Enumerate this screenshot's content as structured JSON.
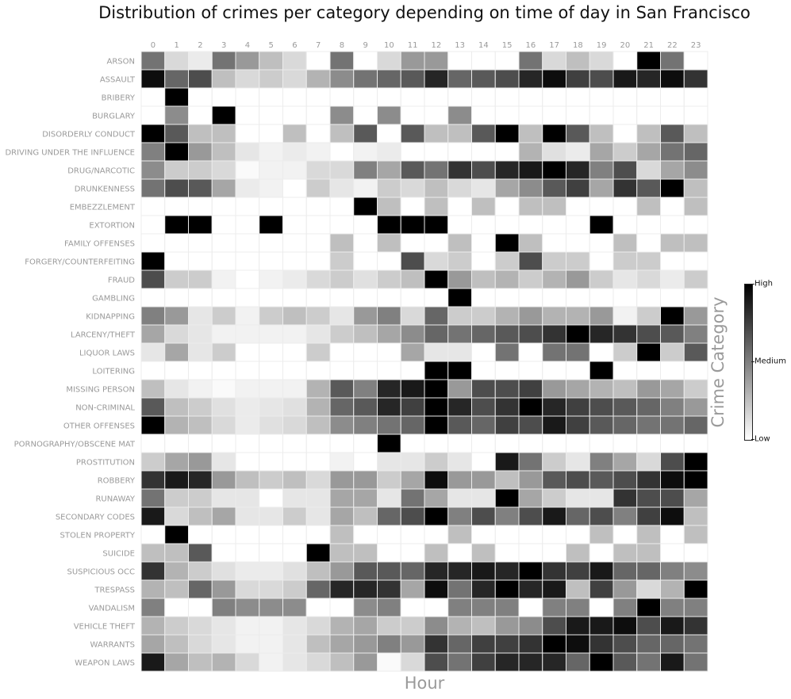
{
  "chart_data": {
    "type": "heatmap",
    "title": "Distribution of crimes per category depending on time of day in San Francisco",
    "xlabel": "Hour",
    "ylabel": "Crime Category",
    "colorbar": {
      "labels": [
        "High",
        "Medium",
        "Low"
      ],
      "high_color": "#000000",
      "low_color": "#ffffff"
    },
    "value_scale": "0 = lowest intensity (white), 1 = highest intensity (black)",
    "x": [
      "0",
      "1",
      "2",
      "3",
      "4",
      "5",
      "6",
      "7",
      "8",
      "9",
      "10",
      "11",
      "12",
      "13",
      "14",
      "15",
      "16",
      "17",
      "18",
      "19",
      "20",
      "21",
      "22",
      "23"
    ],
    "y": [
      "ARSON",
      "ASSAULT",
      "BRIBERY",
      "BURGLARY",
      "DISORDERLY CONDUCT",
      "DRIVING UNDER THE INFLUENCE",
      "DRUG/NARCOTIC",
      "DRUNKENNESS",
      "EMBEZZLEMENT",
      "EXTORTION",
      "FAMILY OFFENSES",
      "FORGERY/COUNTERFEITING",
      "FRAUD",
      "GAMBLING",
      "KIDNAPPING",
      "LARCENY/THEFT",
      "LIQUOR LAWS",
      "LOITERING",
      "MISSING PERSON",
      "NON-CRIMINAL",
      "OTHER OFFENSES",
      "PORNOGRAPHY/OBSCENE MAT",
      "PROSTITUTION",
      "ROBBERY",
      "RUNAWAY",
      "SECONDARY CODES",
      "STOLEN PROPERTY",
      "SUICIDE",
      "SUSPICIOUS OCC",
      "TRESPASS",
      "VANDALISM",
      "VEHICLE THEFT",
      "WARRANTS",
      "WEAPON LAWS"
    ],
    "values": [
      [
        0.55,
        0.15,
        0.08,
        0.55,
        0.4,
        0.25,
        0.15,
        0.0,
        0.55,
        0.0,
        0.15,
        0.4,
        0.4,
        0.0,
        0.0,
        0.0,
        0.55,
        0.15,
        0.25,
        0.15,
        0.0,
        1.0,
        0.55,
        0.0
      ],
      [
        0.95,
        0.6,
        0.7,
        0.25,
        0.15,
        0.2,
        0.15,
        0.3,
        0.45,
        0.55,
        0.6,
        0.65,
        0.85,
        0.6,
        0.65,
        0.7,
        0.85,
        0.95,
        0.75,
        0.7,
        0.9,
        0.85,
        0.95,
        0.8
      ],
      [
        0.0,
        1.0,
        0.0,
        0.0,
        0.0,
        0.0,
        0.0,
        0.0,
        0.0,
        0.0,
        0.0,
        0.0,
        0.0,
        0.0,
        0.0,
        0.0,
        0.0,
        0.0,
        0.0,
        0.0,
        0.0,
        0.0,
        0.0,
        0.0
      ],
      [
        0.0,
        0.45,
        0.0,
        1.0,
        0.0,
        0.0,
        0.0,
        0.0,
        0.45,
        0.0,
        0.45,
        0.0,
        0.0,
        0.45,
        0.0,
        0.0,
        0.0,
        0.0,
        0.0,
        0.0,
        0.0,
        0.0,
        0.0,
        0.0
      ],
      [
        1.0,
        0.65,
        0.25,
        0.25,
        0.0,
        0.0,
        0.25,
        0.0,
        0.25,
        0.65,
        0.0,
        0.65,
        0.25,
        0.25,
        0.65,
        1.0,
        0.25,
        1.0,
        0.65,
        0.25,
        0.0,
        0.25,
        0.65,
        0.25
      ],
      [
        0.5,
        1.0,
        0.4,
        0.25,
        0.1,
        0.05,
        0.08,
        0.05,
        0.0,
        0.05,
        0.08,
        0.0,
        0.0,
        0.0,
        0.0,
        0.0,
        0.3,
        0.12,
        0.08,
        0.35,
        0.2,
        0.35,
        0.55,
        0.6
      ],
      [
        0.45,
        0.2,
        0.2,
        0.15,
        0.02,
        0.05,
        0.05,
        0.15,
        0.15,
        0.5,
        0.35,
        0.65,
        0.55,
        0.8,
        0.7,
        0.85,
        0.9,
        1.0,
        0.85,
        0.5,
        0.7,
        0.15,
        0.35,
        0.45
      ],
      [
        0.55,
        0.7,
        0.65,
        0.35,
        0.08,
        0.05,
        0.0,
        0.2,
        0.1,
        0.05,
        0.2,
        0.15,
        0.25,
        0.15,
        0.1,
        0.35,
        0.45,
        0.65,
        0.75,
        0.35,
        0.8,
        0.65,
        1.0,
        0.25
      ],
      [
        0.0,
        0.0,
        0.0,
        0.0,
        0.0,
        0.0,
        0.0,
        0.0,
        0.0,
        1.0,
        0.25,
        0.0,
        0.25,
        0.0,
        0.25,
        0.0,
        0.25,
        0.25,
        0.0,
        0.0,
        0.0,
        0.25,
        0.0,
        0.25
      ],
      [
        0.0,
        1.0,
        1.0,
        0.0,
        0.0,
        1.0,
        0.0,
        0.0,
        0.0,
        0.0,
        1.0,
        1.0,
        1.0,
        0.0,
        0.0,
        0.0,
        0.0,
        0.0,
        0.0,
        1.0,
        0.0,
        0.0,
        0.0,
        0.0
      ],
      [
        0.0,
        0.0,
        0.0,
        0.0,
        0.0,
        0.0,
        0.0,
        0.0,
        0.25,
        0.0,
        0.25,
        0.0,
        0.0,
        0.25,
        0.0,
        1.0,
        0.25,
        0.0,
        0.0,
        0.0,
        0.25,
        0.0,
        0.25,
        0.25
      ],
      [
        1.0,
        0.0,
        0.0,
        0.0,
        0.0,
        0.0,
        0.0,
        0.0,
        0.2,
        0.0,
        0.0,
        0.7,
        0.15,
        0.2,
        0.0,
        0.2,
        0.7,
        0.2,
        0.2,
        0.0,
        0.2,
        0.2,
        0.0,
        0.0
      ],
      [
        0.7,
        0.2,
        0.2,
        0.05,
        0.0,
        0.05,
        0.08,
        0.15,
        0.2,
        0.12,
        0.2,
        0.25,
        1.0,
        0.4,
        0.25,
        0.3,
        0.2,
        0.3,
        0.4,
        0.2,
        0.1,
        0.15,
        0.08,
        0.2
      ],
      [
        0.0,
        0.0,
        0.0,
        0.0,
        0.0,
        0.0,
        0.0,
        0.0,
        0.0,
        0.0,
        0.0,
        0.0,
        0.0,
        1.0,
        0.0,
        0.0,
        0.0,
        0.0,
        0.0,
        0.0,
        0.0,
        0.0,
        0.0,
        0.0
      ],
      [
        0.5,
        0.4,
        0.1,
        0.2,
        0.05,
        0.2,
        0.25,
        0.2,
        0.1,
        0.4,
        0.5,
        0.15,
        0.6,
        0.2,
        0.2,
        0.3,
        0.4,
        0.3,
        0.3,
        0.4,
        0.05,
        0.2,
        1.0,
        0.4
      ],
      [
        0.35,
        0.15,
        0.1,
        0.05,
        0.05,
        0.05,
        0.05,
        0.1,
        0.2,
        0.25,
        0.35,
        0.45,
        0.6,
        0.55,
        0.6,
        0.65,
        0.7,
        0.8,
        1.0,
        0.85,
        0.8,
        0.7,
        0.65,
        0.5
      ],
      [
        0.1,
        0.35,
        0.1,
        0.2,
        0.0,
        0.0,
        0.0,
        0.2,
        0.0,
        0.0,
        0.0,
        0.35,
        0.1,
        0.1,
        0.0,
        0.55,
        0.0,
        0.55,
        0.55,
        0.0,
        0.2,
        1.0,
        0.2,
        0.65
      ],
      [
        0.0,
        0.0,
        0.0,
        0.0,
        0.0,
        0.0,
        0.0,
        0.0,
        0.0,
        0.0,
        0.0,
        0.0,
        1.0,
        1.0,
        0.0,
        0.0,
        0.0,
        0.0,
        0.0,
        1.0,
        0.0,
        0.0,
        0.0,
        0.0
      ],
      [
        0.25,
        0.1,
        0.05,
        0.02,
        0.05,
        0.05,
        0.05,
        0.3,
        0.65,
        0.5,
        0.85,
        0.9,
        1.0,
        0.4,
        0.7,
        0.7,
        0.75,
        0.4,
        0.35,
        0.3,
        0.25,
        0.4,
        0.35,
        0.2
      ],
      [
        0.65,
        0.25,
        0.2,
        0.12,
        0.08,
        0.1,
        0.12,
        0.3,
        0.6,
        0.65,
        0.85,
        0.75,
        1.0,
        0.85,
        0.7,
        0.8,
        1.0,
        0.85,
        0.75,
        0.7,
        0.65,
        0.6,
        0.5,
        0.4
      ],
      [
        1.0,
        0.3,
        0.25,
        0.15,
        0.08,
        0.12,
        0.15,
        0.25,
        0.45,
        0.5,
        0.55,
        0.6,
        1.0,
        0.65,
        0.6,
        0.75,
        0.7,
        0.9,
        0.75,
        0.65,
        0.6,
        0.55,
        0.55,
        0.6
      ],
      [
        0.0,
        0.0,
        0.0,
        0.0,
        0.0,
        0.0,
        0.0,
        0.0,
        0.0,
        0.0,
        1.0,
        0.0,
        0.0,
        0.0,
        0.0,
        0.0,
        0.0,
        0.0,
        0.0,
        0.0,
        0.0,
        0.0,
        0.0,
        0.0
      ],
      [
        0.2,
        0.35,
        0.4,
        0.1,
        0.0,
        0.0,
        0.0,
        0.0,
        0.05,
        0.0,
        0.1,
        0.1,
        0.2,
        0.1,
        0.0,
        0.9,
        0.55,
        0.2,
        0.1,
        0.5,
        0.35,
        0.15,
        0.7,
        1.0
      ],
      [
        0.8,
        0.9,
        0.85,
        0.4,
        0.25,
        0.2,
        0.25,
        0.15,
        0.4,
        0.4,
        0.2,
        0.35,
        0.95,
        0.4,
        0.4,
        0.25,
        0.4,
        0.65,
        0.7,
        0.65,
        0.7,
        0.8,
        0.95,
        1.0
      ],
      [
        0.55,
        0.2,
        0.2,
        0.1,
        0.1,
        0.0,
        0.1,
        0.1,
        0.35,
        0.35,
        0.1,
        0.55,
        0.35,
        0.1,
        0.1,
        1.0,
        0.35,
        0.2,
        0.1,
        0.1,
        0.8,
        0.7,
        0.7,
        0.35
      ],
      [
        0.9,
        0.15,
        0.25,
        0.35,
        0.1,
        0.1,
        0.2,
        0.1,
        0.35,
        0.25,
        0.6,
        0.7,
        1.0,
        0.5,
        0.7,
        0.5,
        0.7,
        0.9,
        0.6,
        0.7,
        0.5,
        0.75,
        0.95,
        0.25
      ],
      [
        0.0,
        1.0,
        0.0,
        0.0,
        0.0,
        0.0,
        0.0,
        0.0,
        0.25,
        0.0,
        0.0,
        0.0,
        0.0,
        0.25,
        0.0,
        0.0,
        0.0,
        0.0,
        0.0,
        0.25,
        0.0,
        0.25,
        0.0,
        0.25
      ],
      [
        0.25,
        0.25,
        0.65,
        0.0,
        0.0,
        0.0,
        0.0,
        1.0,
        0.25,
        0.25,
        0.0,
        0.0,
        0.25,
        0.0,
        0.25,
        0.0,
        0.0,
        0.0,
        0.25,
        0.0,
        0.25,
        0.25,
        0.0,
        0.0
      ],
      [
        0.8,
        0.3,
        0.2,
        0.12,
        0.08,
        0.08,
        0.12,
        0.25,
        0.4,
        0.65,
        0.65,
        0.6,
        0.85,
        0.85,
        0.9,
        0.85,
        1.0,
        0.8,
        0.75,
        0.9,
        0.6,
        0.6,
        0.5,
        0.45
      ],
      [
        0.3,
        0.25,
        0.6,
        0.4,
        0.15,
        0.15,
        0.2,
        0.6,
        0.85,
        0.85,
        0.8,
        0.35,
        0.95,
        0.55,
        0.85,
        1.0,
        0.85,
        0.9,
        0.25,
        0.75,
        0.4,
        0.15,
        0.3,
        1.0
      ],
      [
        0.5,
        0.0,
        0.0,
        0.5,
        0.45,
        0.45,
        0.45,
        0.0,
        0.0,
        0.45,
        0.5,
        0.0,
        0.0,
        0.5,
        0.5,
        0.5,
        0.0,
        0.5,
        0.5,
        0.0,
        0.5,
        1.0,
        0.5,
        0.5
      ],
      [
        0.3,
        0.2,
        0.15,
        0.1,
        0.05,
        0.05,
        0.1,
        0.15,
        0.3,
        0.35,
        0.2,
        0.2,
        0.45,
        0.3,
        0.25,
        0.4,
        0.45,
        0.7,
        0.9,
        0.9,
        0.95,
        0.7,
        0.9,
        0.8
      ],
      [
        0.35,
        0.25,
        0.15,
        0.1,
        0.05,
        0.05,
        0.1,
        0.25,
        0.35,
        0.4,
        0.5,
        0.4,
        0.8,
        0.6,
        0.75,
        0.75,
        0.8,
        1.0,
        0.95,
        0.8,
        0.7,
        0.6,
        0.6,
        0.55
      ],
      [
        0.9,
        0.35,
        0.25,
        0.3,
        0.15,
        0.05,
        0.1,
        0.15,
        0.25,
        0.4,
        0.02,
        0.15,
        0.7,
        0.55,
        0.75,
        0.85,
        0.85,
        0.85,
        0.6,
        1.0,
        0.65,
        0.55,
        0.9,
        0.55
      ]
    ]
  }
}
